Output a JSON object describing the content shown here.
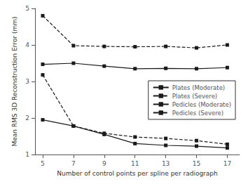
{
  "chart_data": {
    "type": "line",
    "xlabel": "Number of control points per spline per radiograph",
    "ylabel": "Mean RMS 3D Reconstruction Error (mm)",
    "x": [
      5,
      7,
      9,
      11,
      13,
      15,
      17
    ],
    "series": [
      {
        "name": "Plates (Moderate)",
        "color": "#1a1a1a",
        "line_style": "solid",
        "marker": "square",
        "values": [
          3.47,
          3.5,
          3.42,
          3.35,
          3.36,
          3.35,
          3.38
        ]
      },
      {
        "name": "Plates (Severe)",
        "color": "#1a1a1a",
        "line_style": "dashed",
        "marker": "square",
        "values": [
          4.8,
          3.98,
          3.96,
          3.95,
          3.96,
          3.92,
          4.0
        ]
      },
      {
        "name": "Pedicles (Moderate)",
        "color": "#1a1a1a",
        "line_style": "solid",
        "marker": "square",
        "values": [
          1.95,
          1.78,
          1.55,
          1.3,
          1.25,
          1.23,
          1.18
        ]
      },
      {
        "name": "Pedicles (Severe)",
        "color": "#1a1a1a",
        "line_style": "dashed",
        "marker": "square",
        "values": [
          3.18,
          1.78,
          1.58,
          1.48,
          1.44,
          1.38,
          1.28
        ]
      }
    ],
    "xlim": [
      4.5,
      17.8
    ],
    "xticks": [
      5,
      7,
      9,
      11,
      13,
      15,
      17
    ],
    "ylim": [
      1,
      5
    ],
    "yticks": [
      1,
      2,
      3,
      4,
      5
    ],
    "grid": false,
    "legend": "right"
  }
}
